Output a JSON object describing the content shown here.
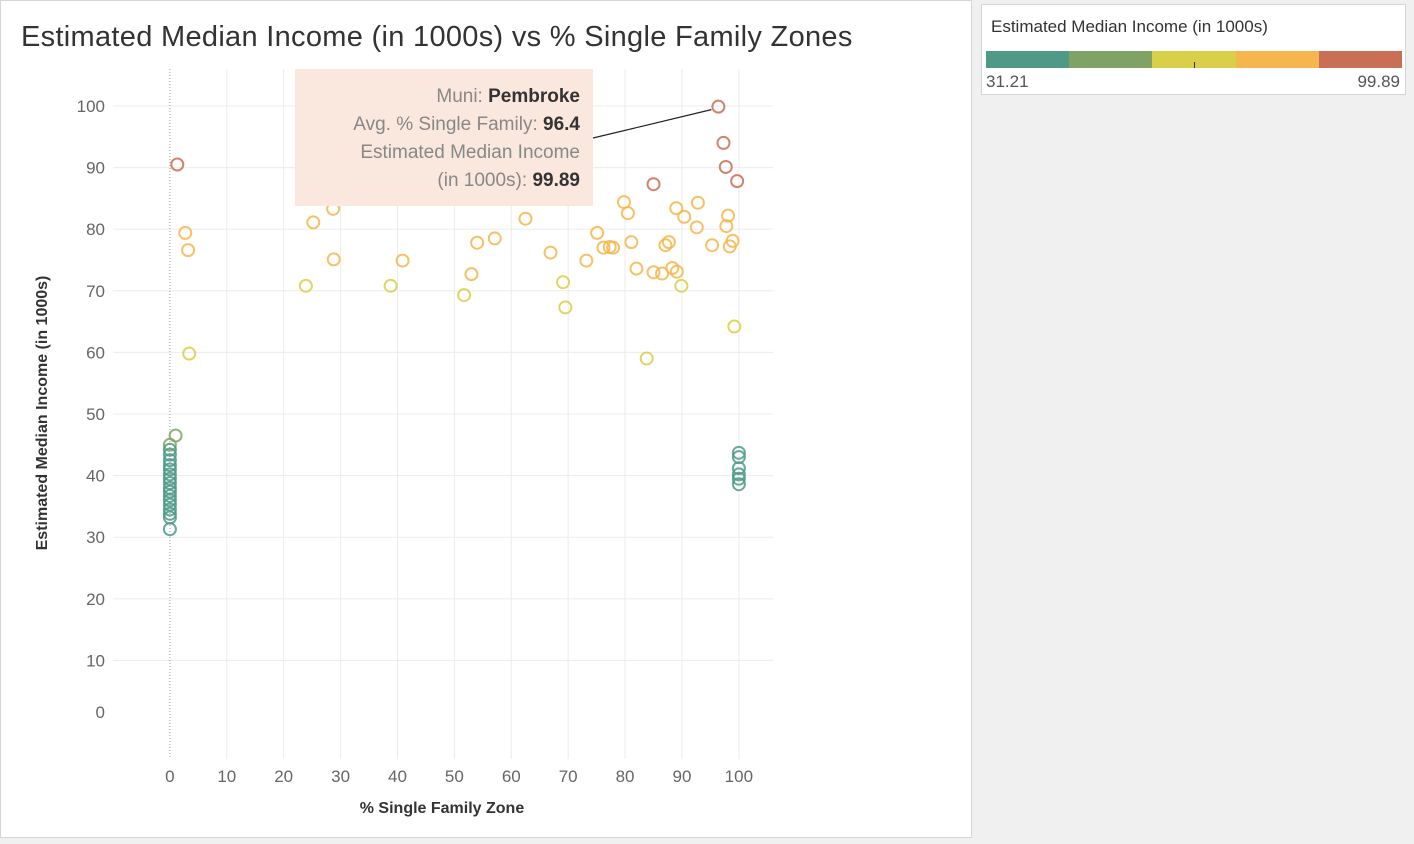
{
  "chart_data": {
    "type": "scatter",
    "title": "Estimated Median Income (in 1000s) vs % Single Family Zones",
    "xlabel": "% Single Family Zone",
    "ylabel": "Estimated Median Income (in 1000s)",
    "xlim": [
      -10,
      106
    ],
    "ylim": [
      -6,
      106
    ],
    "xticks": [
      0,
      10,
      20,
      30,
      40,
      50,
      60,
      70,
      80,
      90,
      100
    ],
    "yticks": [
      0,
      10,
      20,
      30,
      40,
      50,
      60,
      70,
      80,
      90,
      100
    ],
    "grid": true,
    "marker": "hollow-circle",
    "color_scale": {
      "title": "Estimated Median Income (in 1000s)",
      "min": 31.21,
      "max": 99.89,
      "min_label": "31.21",
      "max_label": "99.89",
      "steps": [
        "#4e9a87",
        "#7fa364",
        "#d9d04a",
        "#f4b64d",
        "#c86f55"
      ]
    },
    "points": [
      {
        "x": 96.4,
        "y": 99.89,
        "highlighted": true
      },
      {
        "x": 97.3,
        "y": 94
      },
      {
        "x": 97.7,
        "y": 90.1
      },
      {
        "x": 99.7,
        "y": 87.8
      },
      {
        "x": 1.3,
        "y": 90.5
      },
      {
        "x": 85,
        "y": 87.3
      },
      {
        "x": 2.7,
        "y": 79.4
      },
      {
        "x": 3.2,
        "y": 76.6
      },
      {
        "x": 3.4,
        "y": 59.8
      },
      {
        "x": 23.9,
        "y": 70.8
      },
      {
        "x": 25.2,
        "y": 81.1
      },
      {
        "x": 28.7,
        "y": 83.3
      },
      {
        "x": 28.8,
        "y": 75.1
      },
      {
        "x": 38.8,
        "y": 70.8
      },
      {
        "x": 40.9,
        "y": 74.9
      },
      {
        "x": 51.7,
        "y": 69.3
      },
      {
        "x": 53,
        "y": 72.7
      },
      {
        "x": 54,
        "y": 77.8
      },
      {
        "x": 57.1,
        "y": 78.5
      },
      {
        "x": 62.5,
        "y": 81.7
      },
      {
        "x": 66.9,
        "y": 76.2
      },
      {
        "x": 69.1,
        "y": 71.4
      },
      {
        "x": 69.5,
        "y": 67.3
      },
      {
        "x": 73.2,
        "y": 74.9
      },
      {
        "x": 75.1,
        "y": 79.4
      },
      {
        "x": 76.2,
        "y": 77
      },
      {
        "x": 77.3,
        "y": 77.1
      },
      {
        "x": 77.9,
        "y": 77
      },
      {
        "x": 79.8,
        "y": 84.4
      },
      {
        "x": 80.5,
        "y": 82.6
      },
      {
        "x": 81.1,
        "y": 77.9
      },
      {
        "x": 82,
        "y": 73.6
      },
      {
        "x": 83.8,
        "y": 59
      },
      {
        "x": 85,
        "y": 73
      },
      {
        "x": 86.5,
        "y": 72.8
      },
      {
        "x": 87.1,
        "y": 77.4
      },
      {
        "x": 87.7,
        "y": 77.9
      },
      {
        "x": 88.3,
        "y": 73.7
      },
      {
        "x": 89,
        "y": 83.4
      },
      {
        "x": 89.1,
        "y": 73.1
      },
      {
        "x": 89.9,
        "y": 70.8
      },
      {
        "x": 90.4,
        "y": 82
      },
      {
        "x": 92.6,
        "y": 80.3
      },
      {
        "x": 92.8,
        "y": 84.3
      },
      {
        "x": 95.3,
        "y": 77.4
      },
      {
        "x": 97.8,
        "y": 80.5
      },
      {
        "x": 98.1,
        "y": 82.2
      },
      {
        "x": 98.4,
        "y": 77.2
      },
      {
        "x": 98.9,
        "y": 78.1
      },
      {
        "x": 99.2,
        "y": 64.2
      },
      {
        "x": 1,
        "y": 46.5
      },
      {
        "x": 0,
        "y": 45
      },
      {
        "x": 0,
        "y": 44.2
      },
      {
        "x": 0,
        "y": 43.4
      },
      {
        "x": 0,
        "y": 42.5
      },
      {
        "x": 0,
        "y": 41.7
      },
      {
        "x": 0,
        "y": 41
      },
      {
        "x": 0,
        "y": 40.2
      },
      {
        "x": 0,
        "y": 39.5
      },
      {
        "x": 0,
        "y": 38.8
      },
      {
        "x": 0,
        "y": 38
      },
      {
        "x": 0,
        "y": 37.4
      },
      {
        "x": 0,
        "y": 36.7
      },
      {
        "x": 0,
        "y": 36
      },
      {
        "x": 0,
        "y": 35.3
      },
      {
        "x": 0,
        "y": 34.5
      },
      {
        "x": 0,
        "y": 33.8
      },
      {
        "x": 0,
        "y": 33.2
      },
      {
        "x": 0,
        "y": 31.3
      },
      {
        "x": 100,
        "y": 43.7
      },
      {
        "x": 100,
        "y": 43
      },
      {
        "x": 100,
        "y": 41.2
      },
      {
        "x": 100,
        "y": 40.2
      },
      {
        "x": 100,
        "y": 39.5
      },
      {
        "x": 100,
        "y": 38.6
      }
    ],
    "tooltip": {
      "muni_label": "Muni:",
      "muni_value": "Pembroke",
      "sf_label": "Avg. % Single Family:",
      "sf_value": "96.4",
      "income_label_line1": "Estimated Median Income",
      "income_label_line2": "(in 1000s):",
      "income_value": "99.89"
    }
  }
}
